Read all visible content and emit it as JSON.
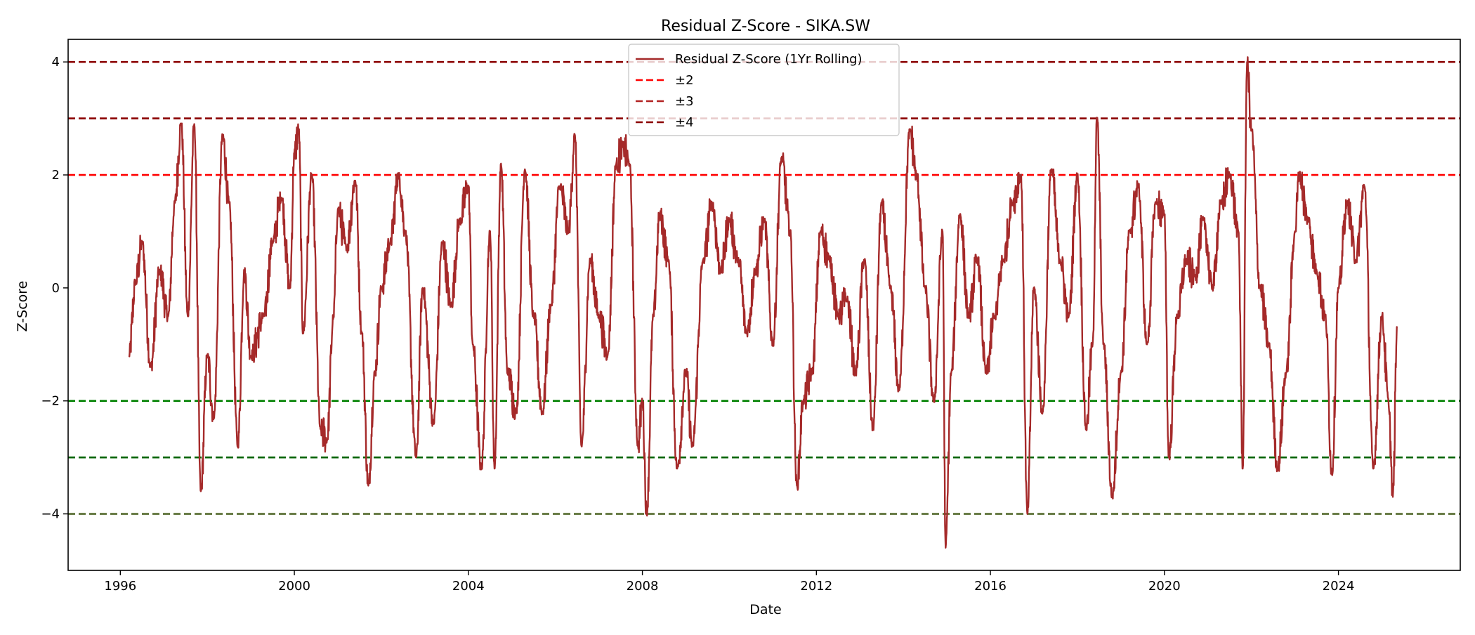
{
  "chart_data": {
    "type": "line",
    "title": "Residual Z-Score - SIKA.SW",
    "xlabel": "Date",
    "ylabel": "Z-Score",
    "xlim": [
      1994.8,
      2026.8
    ],
    "ylim": [
      -5.0,
      4.4
    ],
    "xticks": [
      1996,
      2000,
      2004,
      2008,
      2012,
      2016,
      2020,
      2024
    ],
    "xtick_labels": [
      "1996",
      "2000",
      "2004",
      "2008",
      "2012",
      "2016",
      "2020",
      "2024"
    ],
    "yticks": [
      -4,
      -2,
      0,
      2,
      4
    ],
    "ytick_labels": [
      "−4",
      "−2",
      "0",
      "2",
      "4"
    ],
    "grid": false,
    "legend_position": "top-center",
    "legend": [
      {
        "label": "Residual Z-Score (1Yr Rolling)",
        "style": "solid",
        "color": "#a52a2a"
      },
      {
        "label": "±2",
        "style": "dashed",
        "color": "#ff0000"
      },
      {
        "label": "±3",
        "style": "dashed",
        "color": "#b22222"
      },
      {
        "label": "±4",
        "style": "dashed",
        "color": "#8b0000"
      }
    ],
    "threshold_lines": [
      {
        "y": 4,
        "color": "#8b0000"
      },
      {
        "y": 3,
        "color": "#8b0000"
      },
      {
        "y": 2,
        "color": "#ff0000"
      },
      {
        "y": -2,
        "color": "#008000"
      },
      {
        "y": -3,
        "color": "#006400"
      },
      {
        "y": -4,
        "color": "#556b2f"
      }
    ],
    "series": [
      {
        "name": "Residual Z-Score (1Yr Rolling)",
        "color": "#a52a2a",
        "x_start": 1996.2,
        "x_end": 2025.35,
        "anchors": [
          [
            1996.2,
            -1.2
          ],
          [
            1996.35,
            0.1
          ],
          [
            1996.5,
            0.8
          ],
          [
            1996.7,
            -1.4
          ],
          [
            1996.9,
            0.3
          ],
          [
            1997.1,
            -0.5
          ],
          [
            1997.25,
            1.5
          ],
          [
            1997.4,
            2.9
          ],
          [
            1997.55,
            -0.5
          ],
          [
            1997.7,
            2.9
          ],
          [
            1997.85,
            -3.6
          ],
          [
            1998.0,
            -1.2
          ],
          [
            1998.15,
            -2.3
          ],
          [
            1998.35,
            2.7
          ],
          [
            1998.5,
            1.5
          ],
          [
            1998.7,
            -2.8
          ],
          [
            1998.85,
            0.3
          ],
          [
            1999.0,
            -1.2
          ],
          [
            1999.3,
            -0.5
          ],
          [
            1999.5,
            0.8
          ],
          [
            1999.7,
            1.6
          ],
          [
            1999.9,
            0.0
          ],
          [
            2000.0,
            2.4
          ],
          [
            2000.1,
            2.8
          ],
          [
            2000.2,
            -0.8
          ],
          [
            2000.4,
            2.0
          ],
          [
            2000.6,
            -2.5
          ],
          [
            2000.75,
            -2.7
          ],
          [
            2000.9,
            -0.5
          ],
          [
            2001.0,
            1.4
          ],
          [
            2001.2,
            0.7
          ],
          [
            2001.4,
            1.9
          ],
          [
            2001.55,
            -0.8
          ],
          [
            2001.7,
            -3.5
          ],
          [
            2001.85,
            -1.5
          ],
          [
            2002.0,
            0.0
          ],
          [
            2002.2,
            0.8
          ],
          [
            2002.4,
            2.0
          ],
          [
            2002.55,
            1.0
          ],
          [
            2002.8,
            -3.0
          ],
          [
            2002.95,
            0.0
          ],
          [
            2003.2,
            -2.4
          ],
          [
            2003.4,
            0.8
          ],
          [
            2003.6,
            -0.3
          ],
          [
            2003.8,
            1.2
          ],
          [
            2004.0,
            1.8
          ],
          [
            2004.1,
            -1.0
          ],
          [
            2004.3,
            -3.2
          ],
          [
            2004.5,
            1.0
          ],
          [
            2004.6,
            -3.2
          ],
          [
            2004.75,
            2.2
          ],
          [
            2004.9,
            -1.5
          ],
          [
            2005.1,
            -2.2
          ],
          [
            2005.3,
            2.1
          ],
          [
            2005.5,
            -0.5
          ],
          [
            2005.7,
            -2.2
          ],
          [
            2005.9,
            -0.3
          ],
          [
            2006.1,
            1.8
          ],
          [
            2006.3,
            1.0
          ],
          [
            2006.45,
            2.7
          ],
          [
            2006.6,
            -2.8
          ],
          [
            2006.8,
            0.5
          ],
          [
            2007.0,
            -0.5
          ],
          [
            2007.2,
            -1.2
          ],
          [
            2007.4,
            2.2
          ],
          [
            2007.55,
            2.5
          ],
          [
            2007.7,
            2.2
          ],
          [
            2007.9,
            -2.8
          ],
          [
            2008.0,
            -2.0
          ],
          [
            2008.1,
            -4.0
          ],
          [
            2008.25,
            -0.5
          ],
          [
            2008.4,
            1.3
          ],
          [
            2008.6,
            0.5
          ],
          [
            2008.8,
            -3.2
          ],
          [
            2009.0,
            -1.5
          ],
          [
            2009.15,
            -2.8
          ],
          [
            2009.4,
            0.5
          ],
          [
            2009.6,
            1.5
          ],
          [
            2009.8,
            0.3
          ],
          [
            2010.0,
            1.2
          ],
          [
            2010.2,
            0.5
          ],
          [
            2010.4,
            -0.8
          ],
          [
            2010.6,
            0.3
          ],
          [
            2010.8,
            1.2
          ],
          [
            2011.0,
            -1.0
          ],
          [
            2011.2,
            2.3
          ],
          [
            2011.4,
            1.0
          ],
          [
            2011.55,
            -3.5
          ],
          [
            2011.7,
            -2.0
          ],
          [
            2011.9,
            -1.5
          ],
          [
            2012.1,
            1.0
          ],
          [
            2012.3,
            0.5
          ],
          [
            2012.5,
            -0.5
          ],
          [
            2012.7,
            -0.2
          ],
          [
            2012.9,
            -1.5
          ],
          [
            2013.1,
            0.5
          ],
          [
            2013.3,
            -2.5
          ],
          [
            2013.5,
            1.5
          ],
          [
            2013.7,
            0.0
          ],
          [
            2013.9,
            -1.8
          ],
          [
            2014.15,
            2.8
          ],
          [
            2014.3,
            2.0
          ],
          [
            2014.5,
            0.0
          ],
          [
            2014.7,
            -2.0
          ],
          [
            2014.9,
            1.0
          ],
          [
            2014.97,
            -4.6
          ],
          [
            2015.1,
            -1.5
          ],
          [
            2015.3,
            1.3
          ],
          [
            2015.5,
            -0.5
          ],
          [
            2015.7,
            0.5
          ],
          [
            2015.9,
            -1.5
          ],
          [
            2016.1,
            -0.5
          ],
          [
            2016.3,
            0.5
          ],
          [
            2016.5,
            1.5
          ],
          [
            2016.7,
            2.0
          ],
          [
            2016.85,
            -4.0
          ],
          [
            2017.0,
            0.0
          ],
          [
            2017.2,
            -2.2
          ],
          [
            2017.4,
            2.1
          ],
          [
            2017.6,
            0.5
          ],
          [
            2017.8,
            -0.5
          ],
          [
            2018.0,
            2.0
          ],
          [
            2018.2,
            -2.5
          ],
          [
            2018.35,
            -1.0
          ],
          [
            2018.45,
            3.0
          ],
          [
            2018.6,
            -1.0
          ],
          [
            2018.8,
            -3.7
          ],
          [
            2019.0,
            -1.5
          ],
          [
            2019.2,
            1.0
          ],
          [
            2019.4,
            1.8
          ],
          [
            2019.6,
            -1.0
          ],
          [
            2019.8,
            1.5
          ],
          [
            2020.0,
            1.3
          ],
          [
            2020.1,
            -3.0
          ],
          [
            2020.3,
            -0.5
          ],
          [
            2020.5,
            0.5
          ],
          [
            2020.7,
            0.2
          ],
          [
            2020.9,
            1.2
          ],
          [
            2021.1,
            0.0
          ],
          [
            2021.3,
            1.5
          ],
          [
            2021.5,
            2.0
          ],
          [
            2021.7,
            1.0
          ],
          [
            2021.8,
            -3.2
          ],
          [
            2021.9,
            4.0
          ],
          [
            2022.0,
            2.8
          ],
          [
            2022.2,
            0.0
          ],
          [
            2022.4,
            -1.0
          ],
          [
            2022.6,
            -3.2
          ],
          [
            2022.8,
            -1.5
          ],
          [
            2023.0,
            1.0
          ],
          [
            2023.1,
            2.0
          ],
          [
            2023.3,
            1.2
          ],
          [
            2023.5,
            0.3
          ],
          [
            2023.7,
            -0.5
          ],
          [
            2023.85,
            -3.3
          ],
          [
            2024.0,
            0.0
          ],
          [
            2024.2,
            1.5
          ],
          [
            2024.4,
            0.5
          ],
          [
            2024.6,
            1.8
          ],
          [
            2024.8,
            -3.2
          ],
          [
            2025.0,
            -0.5
          ],
          [
            2025.15,
            -2.0
          ],
          [
            2025.25,
            -3.7
          ],
          [
            2025.35,
            -0.7
          ]
        ]
      }
    ]
  }
}
